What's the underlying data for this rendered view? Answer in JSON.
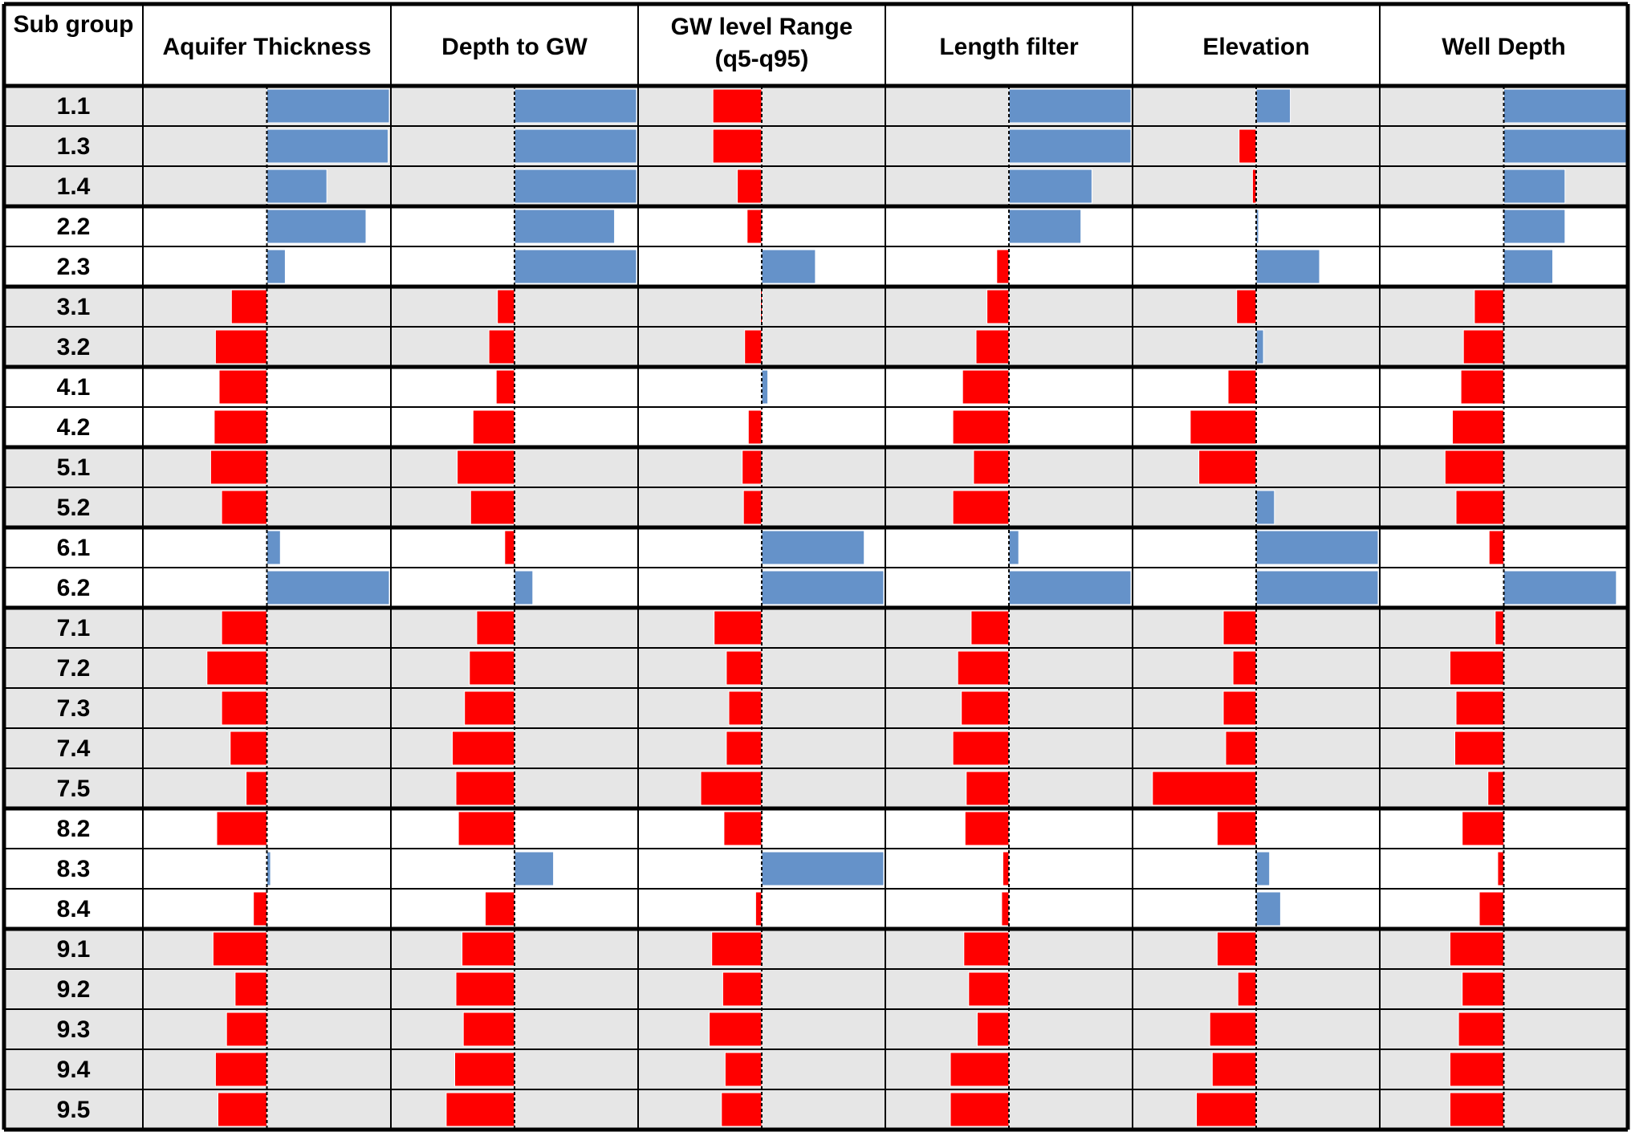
{
  "chart_data": {
    "type": "bar",
    "row_header": "Sub group",
    "columns": [
      [
        "Aquifer Thickness"
      ],
      [
        "Depth to GW"
      ],
      [
        "GW level Range",
        "(q5-q95)"
      ],
      [
        "Length filter"
      ],
      [
        "Elevation"
      ],
      [
        "Well Depth"
      ]
    ],
    "value_range": [
      -1,
      1
    ],
    "positive_color": "#6592c9",
    "negative_color": "#ff0000",
    "zero_line": "dashed",
    "groups": [
      {
        "shaded": true,
        "rows": [
          {
            "label": "1.1",
            "values": [
              1.0,
              1.0,
              -0.4,
              1.0,
              0.28,
              1.0
            ]
          },
          {
            "label": "1.3",
            "values": [
              0.99,
              1.0,
              -0.4,
              1.0,
              -0.14,
              1.0
            ]
          },
          {
            "label": "1.4",
            "values": [
              0.49,
              1.0,
              -0.2,
              0.68,
              -0.03,
              0.5
            ]
          }
        ]
      },
      {
        "shaded": false,
        "rows": [
          {
            "label": "2.2",
            "values": [
              0.81,
              0.82,
              -0.12,
              0.59,
              0.02,
              0.5
            ]
          },
          {
            "label": "2.3",
            "values": [
              0.15,
              1.0,
              0.44,
              -0.1,
              0.52,
              0.4
            ]
          }
        ]
      },
      {
        "shaded": true,
        "rows": [
          {
            "label": "3.1",
            "values": [
              -0.29,
              -0.14,
              -0.01,
              -0.18,
              -0.16,
              -0.24
            ]
          },
          {
            "label": "3.2",
            "values": [
              -0.42,
              -0.21,
              -0.14,
              -0.27,
              0.06,
              -0.33
            ]
          }
        ]
      },
      {
        "shaded": false,
        "rows": [
          {
            "label": "4.1",
            "values": [
              -0.39,
              -0.15,
              0.05,
              -0.38,
              -0.23,
              -0.35
            ]
          },
          {
            "label": "4.2",
            "values": [
              -0.43,
              -0.34,
              -0.11,
              -0.46,
              -0.54,
              -0.42
            ]
          }
        ]
      },
      {
        "shaded": true,
        "rows": [
          {
            "label": "5.1",
            "values": [
              -0.46,
              -0.47,
              -0.16,
              -0.29,
              -0.47,
              -0.48
            ]
          },
          {
            "label": "5.2",
            "values": [
              -0.37,
              -0.36,
              -0.15,
              -0.46,
              0.15,
              -0.39
            ]
          }
        ]
      },
      {
        "shaded": false,
        "rows": [
          {
            "label": "6.1",
            "values": [
              0.11,
              -0.08,
              0.84,
              0.08,
              1.0,
              -0.12
            ]
          },
          {
            "label": "6.2",
            "values": [
              1.0,
              0.15,
              1.0,
              1.0,
              1.0,
              0.92
            ]
          }
        ]
      },
      {
        "shaded": true,
        "rows": [
          {
            "label": "7.1",
            "values": [
              -0.37,
              -0.31,
              -0.39,
              -0.31,
              -0.27,
              -0.07
            ]
          },
          {
            "label": "7.2",
            "values": [
              -0.49,
              -0.37,
              -0.29,
              -0.42,
              -0.19,
              -0.44
            ]
          },
          {
            "label": "7.3",
            "values": [
              -0.37,
              -0.41,
              -0.27,
              -0.39,
              -0.27,
              -0.39
            ]
          },
          {
            "label": "7.4",
            "values": [
              -0.3,
              -0.51,
              -0.29,
              -0.46,
              -0.25,
              -0.4
            ]
          },
          {
            "label": "7.5",
            "values": [
              -0.17,
              -0.48,
              -0.5,
              -0.35,
              -0.85,
              -0.13
            ]
          }
        ]
      },
      {
        "shaded": false,
        "rows": [
          {
            "label": "8.2",
            "values": [
              -0.41,
              -0.46,
              -0.31,
              -0.36,
              -0.32,
              -0.34
            ]
          },
          {
            "label": "8.3",
            "values": [
              0.03,
              0.32,
              1.0,
              -0.05,
              0.11,
              -0.05
            ]
          },
          {
            "label": "8.4",
            "values": [
              -0.11,
              -0.24,
              -0.05,
              -0.06,
              0.2,
              -0.2
            ]
          }
        ]
      },
      {
        "shaded": true,
        "rows": [
          {
            "label": "9.1",
            "values": [
              -0.44,
              -0.43,
              -0.41,
              -0.37,
              -0.32,
              -0.44
            ]
          },
          {
            "label": "9.2",
            "values": [
              -0.26,
              -0.48,
              -0.32,
              -0.33,
              -0.15,
              -0.34
            ]
          },
          {
            "label": "9.3",
            "values": [
              -0.33,
              -0.42,
              -0.43,
              -0.26,
              -0.38,
              -0.37
            ]
          },
          {
            "label": "9.4",
            "values": [
              -0.42,
              -0.49,
              -0.3,
              -0.48,
              -0.36,
              -0.44
            ]
          },
          {
            "label": "9.5",
            "values": [
              -0.4,
              -0.56,
              -0.33,
              -0.48,
              -0.49,
              -0.44
            ]
          }
        ]
      }
    ]
  }
}
